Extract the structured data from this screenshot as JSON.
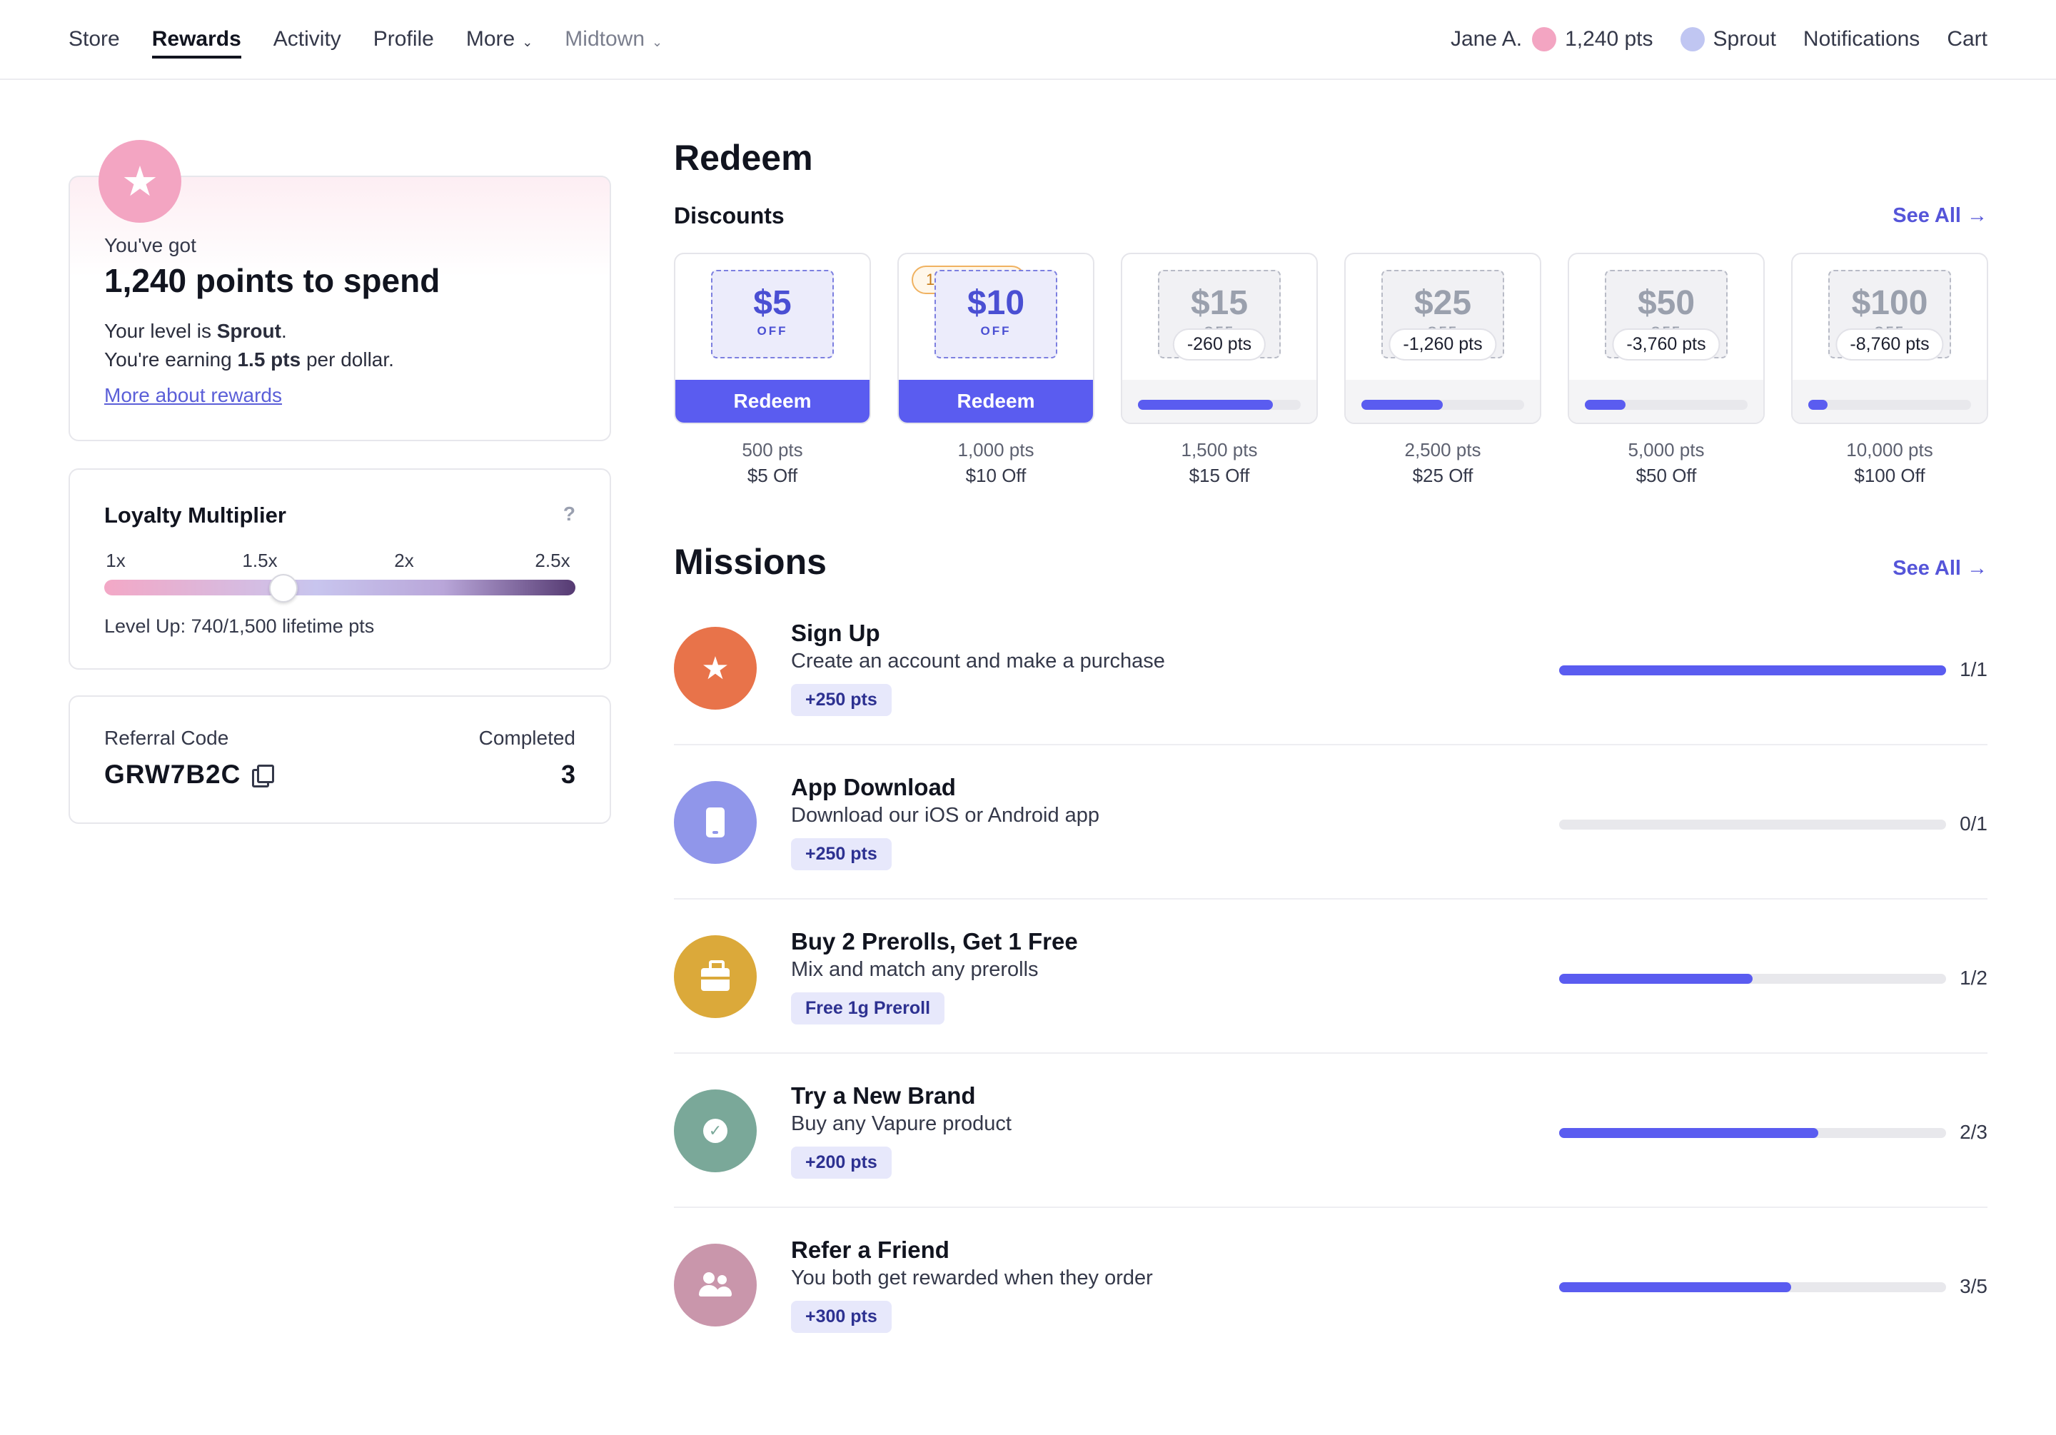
{
  "nav": {
    "left": [
      {
        "label": "Store"
      },
      {
        "label": "Rewards",
        "active": true
      },
      {
        "label": "Activity"
      },
      {
        "label": "Profile"
      },
      {
        "label": "More",
        "dropdown": true
      },
      {
        "label": "Midtown",
        "dropdown": true,
        "muted": true
      }
    ],
    "user_name": "Jane A.",
    "user_points": "1,240 pts",
    "user_level": "Sprout",
    "notifications": "Notifications",
    "cart": "Cart"
  },
  "points_card": {
    "icon": "star-icon",
    "youve_got": "You've got",
    "headline": "1,240 points to spend",
    "level_prefix": "Your level is ",
    "level_name": "Sprout",
    "level_suffix": ".",
    "earning_prefix": "You're earning ",
    "earning_rate": "1.5 pts",
    "earning_suffix": " per dollar.",
    "more_link": "More about rewards"
  },
  "multiplier": {
    "title": "Loyalty Multiplier",
    "help": "?",
    "ticks": [
      "1x",
      "1.5x",
      "2x",
      "2.5x"
    ],
    "current_fraction": 0.38,
    "level_up": "Level Up: 740/1,500 lifetime pts"
  },
  "referral": {
    "code_label": "Referral Code",
    "code": "GRW7B2C",
    "completed_label": "Completed",
    "completed_count": "3"
  },
  "redeem": {
    "title": "Redeem",
    "discounts_title": "Discounts",
    "see_all": "See All →",
    "discounts": [
      {
        "amount": "$5",
        "off": "OFF",
        "state": "redeemable",
        "button": "Redeem",
        "points": "500 pts",
        "name": "$5 Off"
      },
      {
        "amount": "$10",
        "off": "OFF",
        "state": "redeemable",
        "button": "Redeem",
        "points": "1,000 pts",
        "name": "$10 Off",
        "tag": "1"
      },
      {
        "amount": "$15",
        "off": "OFF",
        "state": "locked",
        "need": "-260 pts",
        "progress": 0.83,
        "points": "1,500 pts",
        "name": "$15 Off"
      },
      {
        "amount": "$25",
        "off": "OFF",
        "state": "locked",
        "need": "-1,260 pts",
        "progress": 0.5,
        "points": "2,500 pts",
        "name": "$25 Off"
      },
      {
        "amount": "$50",
        "off": "OFF",
        "state": "locked",
        "need": "-3,760 pts",
        "progress": 0.25,
        "points": "5,000 pts",
        "name": "$50 Off"
      },
      {
        "amount": "$100",
        "off": "OFF",
        "state": "locked",
        "need": "-8,760 pts",
        "progress": 0.12,
        "points": "10,000 pts",
        "name": "$100 Off"
      }
    ]
  },
  "missions": {
    "title": "Missions",
    "see_all": "See All →",
    "items": [
      {
        "title": "Sign Up",
        "desc": "Create an account and make a purchase",
        "reward": "+250 pts",
        "count": "1/1",
        "progress": 1.0,
        "icon": "star-icon",
        "color": "#e8734a"
      },
      {
        "title": "App Download",
        "desc": "Download our iOS or Android app",
        "reward": "+250 pts",
        "count": "0/1",
        "progress": 0.0,
        "icon": "phone-icon",
        "color": "#9096ea"
      },
      {
        "title": "Buy 2 Prerolls, Get 1 Free",
        "desc": "Mix and match any prerolls",
        "reward": "Free 1g Preroll",
        "count": "1/2",
        "progress": 0.5,
        "icon": "bag-icon",
        "color": "#dba93a"
      },
      {
        "title": "Try a New Brand",
        "desc": "Buy any Vapure product",
        "reward": "+200 pts",
        "count": "2/3",
        "progress": 0.667,
        "icon": "check-icon",
        "color": "#7aa899"
      },
      {
        "title": "Refer a Friend",
        "desc": "You both get rewarded when they order",
        "reward": "+300 pts",
        "count": "3/5",
        "progress": 0.6,
        "icon": "people-icon",
        "color": "#c996ab"
      }
    ]
  }
}
